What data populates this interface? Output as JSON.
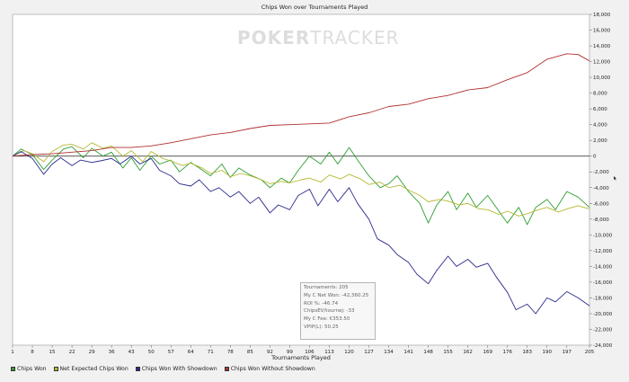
{
  "watermark": {
    "part1": "POKER",
    "part2": "TRACKER"
  },
  "stats": {
    "lines": [
      "Tournaments: 205",
      "My C Net Won: -42,360.25",
      "ROI %: -46.74",
      "ChipsEV/tournej: -33",
      "My C Fee: €353.50",
      "VPIP(L): 50.25"
    ]
  },
  "legend": [
    {
      "label": "Chips Won",
      "color": "#2f9e2f"
    },
    {
      "label": "Net Expected Chips Won",
      "color": "#b5b832"
    },
    {
      "label": "Chips Won With Showdown",
      "color": "#2a2a8c"
    },
    {
      "label": "Chips Won Without Showdown",
      "color": "#b03030"
    }
  ],
  "chart_data": {
    "type": "line",
    "title": "Chips Won over Tournaments Played",
    "xlabel": "Tournaments Played",
    "ylabel": "",
    "xlim": [
      1,
      205
    ],
    "ylim": [
      -24000,
      18000
    ],
    "y_ticks": [
      -24000,
      -22000,
      -20000,
      -18000,
      -16000,
      -14000,
      -12000,
      -10000,
      -8000,
      -6000,
      -4000,
      -2000,
      0,
      2000,
      4000,
      6000,
      8000,
      10000,
      12000,
      14000,
      16000,
      18000
    ],
    "y_tick_labels": [
      "-24,000",
      "-22,000",
      "-20,000",
      "-18,000",
      "-16,000",
      "-14,000",
      "-12,000",
      "-10,000",
      "-8,000",
      "-6,000",
      "-4,000",
      "-2,000",
      "0",
      "2,000",
      "4,000",
      "6,000",
      "8,000",
      "10,000",
      "12,000",
      "14,000",
      "16,000",
      "18,000"
    ],
    "x_ticks": [
      1,
      8,
      15,
      22,
      29,
      36,
      43,
      50,
      57,
      64,
      71,
      78,
      85,
      92,
      99,
      106,
      113,
      120,
      127,
      134,
      141,
      148,
      155,
      162,
      169,
      176,
      183,
      190,
      197,
      205
    ],
    "grid": false,
    "legend_position": "bottom",
    "series": [
      {
        "name": "Chips Won",
        "color": "#2f9e2f",
        "x": [
          1,
          4,
          8,
          12,
          15,
          19,
          22,
          26,
          29,
          33,
          36,
          40,
          43,
          46,
          50,
          53,
          57,
          60,
          64,
          67,
          71,
          75,
          78,
          81,
          85,
          89,
          92,
          96,
          99,
          102,
          106,
          110,
          113,
          116,
          120,
          124,
          127,
          131,
          134,
          137,
          141,
          145,
          148,
          151,
          155,
          158,
          162,
          165,
          169,
          173,
          176,
          180,
          183,
          186,
          190,
          193,
          197,
          201,
          205
        ],
        "y": [
          0,
          900,
          200,
          -1700,
          -500,
          900,
          1200,
          -200,
          1000,
          0,
          500,
          -1500,
          -200,
          -1800,
          0,
          -1000,
          -500,
          -2000,
          -800,
          -1500,
          -2500,
          -1000,
          -2700,
          -1500,
          -2400,
          -3000,
          -4000,
          -2800,
          -3400,
          -1800,
          0,
          -1000,
          500,
          -1000,
          1100,
          -1000,
          -2500,
          -4000,
          -3500,
          -2500,
          -4500,
          -6000,
          -8500,
          -6200,
          -4500,
          -6800,
          -4700,
          -6500,
          -5000,
          -7000,
          -8500,
          -6500,
          -8700,
          -6500,
          -5500,
          -6800,
          -4500,
          -5200,
          -6500
        ]
      },
      {
        "name": "Net Expected Chips Won",
        "color": "#b5b832",
        "x": [
          1,
          5,
          8,
          12,
          15,
          19,
          22,
          26,
          29,
          33,
          36,
          40,
          43,
          47,
          50,
          54,
          57,
          61,
          64,
          68,
          71,
          75,
          78,
          82,
          85,
          89,
          92,
          96,
          99,
          103,
          106,
          110,
          113,
          117,
          120,
          124,
          127,
          131,
          134,
          138,
          141,
          145,
          148,
          152,
          155,
          159,
          162,
          166,
          169,
          173,
          176,
          180,
          183,
          187,
          190,
          194,
          197,
          201,
          205
        ],
        "y": [
          0,
          700,
          300,
          -700,
          600,
          1400,
          1500,
          900,
          1700,
          1000,
          1300,
          0,
          700,
          -700,
          600,
          -300,
          -600,
          -1200,
          -900,
          -1500,
          -2200,
          -1800,
          -2600,
          -2200,
          -2500,
          -3000,
          -3500,
          -3200,
          -3400,
          -3000,
          -2800,
          -3300,
          -2400,
          -2900,
          -2300,
          -2900,
          -3600,
          -3300,
          -4000,
          -3700,
          -4300,
          -5000,
          -5800,
          -5500,
          -5700,
          -6200,
          -6000,
          -6700,
          -6800,
          -7400,
          -7000,
          -7600,
          -7300,
          -6800,
          -6500,
          -7100,
          -6700,
          -6300,
          -6700
        ]
      },
      {
        "name": "Chips Won With Showdown",
        "color": "#2a2a8c",
        "x": [
          1,
          4,
          8,
          12,
          15,
          18,
          22,
          25,
          29,
          32,
          36,
          39,
          43,
          46,
          50,
          53,
          57,
          60,
          64,
          67,
          71,
          74,
          78,
          81,
          85,
          88,
          92,
          95,
          99,
          102,
          106,
          109,
          113,
          116,
          120,
          123,
          127,
          130,
          134,
          137,
          141,
          144,
          148,
          151,
          155,
          158,
          162,
          165,
          169,
          172,
          176,
          179,
          183,
          186,
          190,
          193,
          197,
          201,
          205
        ],
        "y": [
          0,
          600,
          -300,
          -2300,
          -1000,
          -200,
          -1200,
          -500,
          -800,
          -600,
          -300,
          -1000,
          0,
          -1000,
          -300,
          -1800,
          -2500,
          -3500,
          -3800,
          -3000,
          -4500,
          -4000,
          -5200,
          -4500,
          -6000,
          -5200,
          -7200,
          -6200,
          -6800,
          -5000,
          -4200,
          -6300,
          -4200,
          -5800,
          -4000,
          -6000,
          -8000,
          -10500,
          -11300,
          -12500,
          -13500,
          -15000,
          -16200,
          -14500,
          -12700,
          -14000,
          -13100,
          -14100,
          -13600,
          -15300,
          -17300,
          -19500,
          -18800,
          -20000,
          -18000,
          -18500,
          -17200,
          -18000,
          -19000
        ]
      },
      {
        "name": "Chips Won Without Showdown",
        "color": "#b03030",
        "x": [
          1,
          8,
          15,
          22,
          29,
          36,
          43,
          50,
          57,
          64,
          71,
          78,
          85,
          92,
          99,
          106,
          113,
          120,
          127,
          134,
          141,
          148,
          155,
          162,
          169,
          176,
          183,
          190,
          197,
          201,
          205
        ],
        "y": [
          0,
          200,
          300,
          500,
          700,
          1100,
          1100,
          1300,
          1700,
          2200,
          2700,
          3000,
          3500,
          3900,
          4000,
          4100,
          4200,
          5000,
          5500,
          6300,
          6600,
          7300,
          7700,
          8400,
          8700,
          9700,
          10600,
          12300,
          13000,
          12900,
          12100
        ]
      }
    ]
  }
}
